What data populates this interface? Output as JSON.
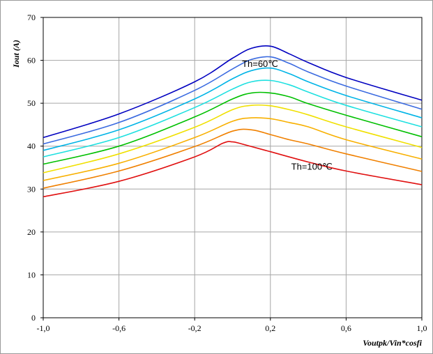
{
  "chart_data": {
    "type": "line",
    "title": "",
    "xlabel": "Voutpk/Vin*cosfi",
    "ylabel": "Iout (A)",
    "xlim": [
      -1.0,
      1.0
    ],
    "ylim": [
      0,
      70
    ],
    "x_ticks": [
      "-1,0",
      "-0,6",
      "-0,2",
      "0,2",
      "0,6",
      "1,0"
    ],
    "y_ticks": [
      "0",
      "10",
      "20",
      "30",
      "40",
      "50",
      "60",
      "70"
    ],
    "grid": true,
    "annotations": [
      {
        "text": "Th=60℃",
        "x": 0.05,
        "y": 58.5
      },
      {
        "text": "Th=100℃",
        "x": 0.31,
        "y": 34.5
      }
    ],
    "series": [
      {
        "color": "#0000c0",
        "x": [
          -1.0,
          -0.6,
          -0.2,
          0.0,
          0.1,
          0.2,
          0.3,
          0.4,
          0.6,
          1.0
        ],
        "y": [
          42.0,
          47.5,
          55.0,
          60.5,
          62.8,
          63.3,
          61.5,
          59.5,
          56.0,
          50.7
        ]
      },
      {
        "color": "#3a6ae0",
        "x": [
          -1.0,
          -0.6,
          -0.2,
          0.0,
          0.1,
          0.2,
          0.3,
          0.4,
          0.6,
          1.0
        ],
        "y": [
          40.5,
          45.5,
          53.0,
          58.0,
          60.2,
          60.8,
          59.3,
          57.3,
          54.0,
          48.6
        ]
      },
      {
        "color": "#00b4e6",
        "x": [
          -1.0,
          -0.6,
          -0.2,
          0.0,
          0.1,
          0.2,
          0.3,
          0.4,
          0.6,
          1.0
        ],
        "y": [
          39.0,
          43.8,
          51.0,
          55.7,
          57.6,
          58.2,
          56.9,
          55.0,
          51.8,
          46.6
        ]
      },
      {
        "color": "#1ee0e0",
        "x": [
          -1.0,
          -0.6,
          -0.2,
          0.0,
          0.1,
          0.2,
          0.3,
          0.4,
          0.6,
          1.0
        ],
        "y": [
          37.5,
          42.0,
          49.0,
          53.3,
          55.0,
          55.3,
          54.3,
          52.6,
          49.5,
          44.5
        ]
      },
      {
        "color": "#00c000",
        "x": [
          -1.0,
          -0.6,
          -0.2,
          0.0,
          0.1,
          0.2,
          0.3,
          0.4,
          0.6,
          1.0
        ],
        "y": [
          35.8,
          40.0,
          46.8,
          51.0,
          52.4,
          52.4,
          51.5,
          49.9,
          47.2,
          42.2
        ]
      },
      {
        "color": "#f0e000",
        "x": [
          -1.0,
          -0.6,
          -0.2,
          0.0,
          0.1,
          0.2,
          0.3,
          0.4,
          0.6,
          1.0
        ],
        "y": [
          33.8,
          38.2,
          44.4,
          48.5,
          49.5,
          49.4,
          48.5,
          47.3,
          44.5,
          39.7
        ]
      },
      {
        "color": "#f8b000",
        "x": [
          -1.0,
          -0.6,
          -0.2,
          0.0,
          0.1,
          0.2,
          0.3,
          0.4,
          0.6,
          1.0
        ],
        "y": [
          32.0,
          36.0,
          42.0,
          45.8,
          46.6,
          46.4,
          45.5,
          44.5,
          41.5,
          37.0
        ]
      },
      {
        "color": "#f08000",
        "x": [
          -1.0,
          -0.6,
          -0.2,
          0.0,
          0.1,
          0.2,
          0.3,
          0.4,
          0.6,
          1.0
        ],
        "y": [
          30.2,
          34.2,
          39.9,
          43.5,
          43.8,
          42.7,
          41.5,
          40.5,
          38.2,
          34.1
        ]
      },
      {
        "color": "#e01010",
        "x": [
          -1.0,
          -0.6,
          -0.2,
          -0.05,
          0.0,
          0.05,
          0.2,
          0.4,
          0.6,
          1.0
        ],
        "y": [
          28.2,
          31.8,
          37.5,
          40.7,
          41.0,
          40.5,
          38.7,
          36.3,
          34.2,
          31.0
        ]
      }
    ]
  }
}
